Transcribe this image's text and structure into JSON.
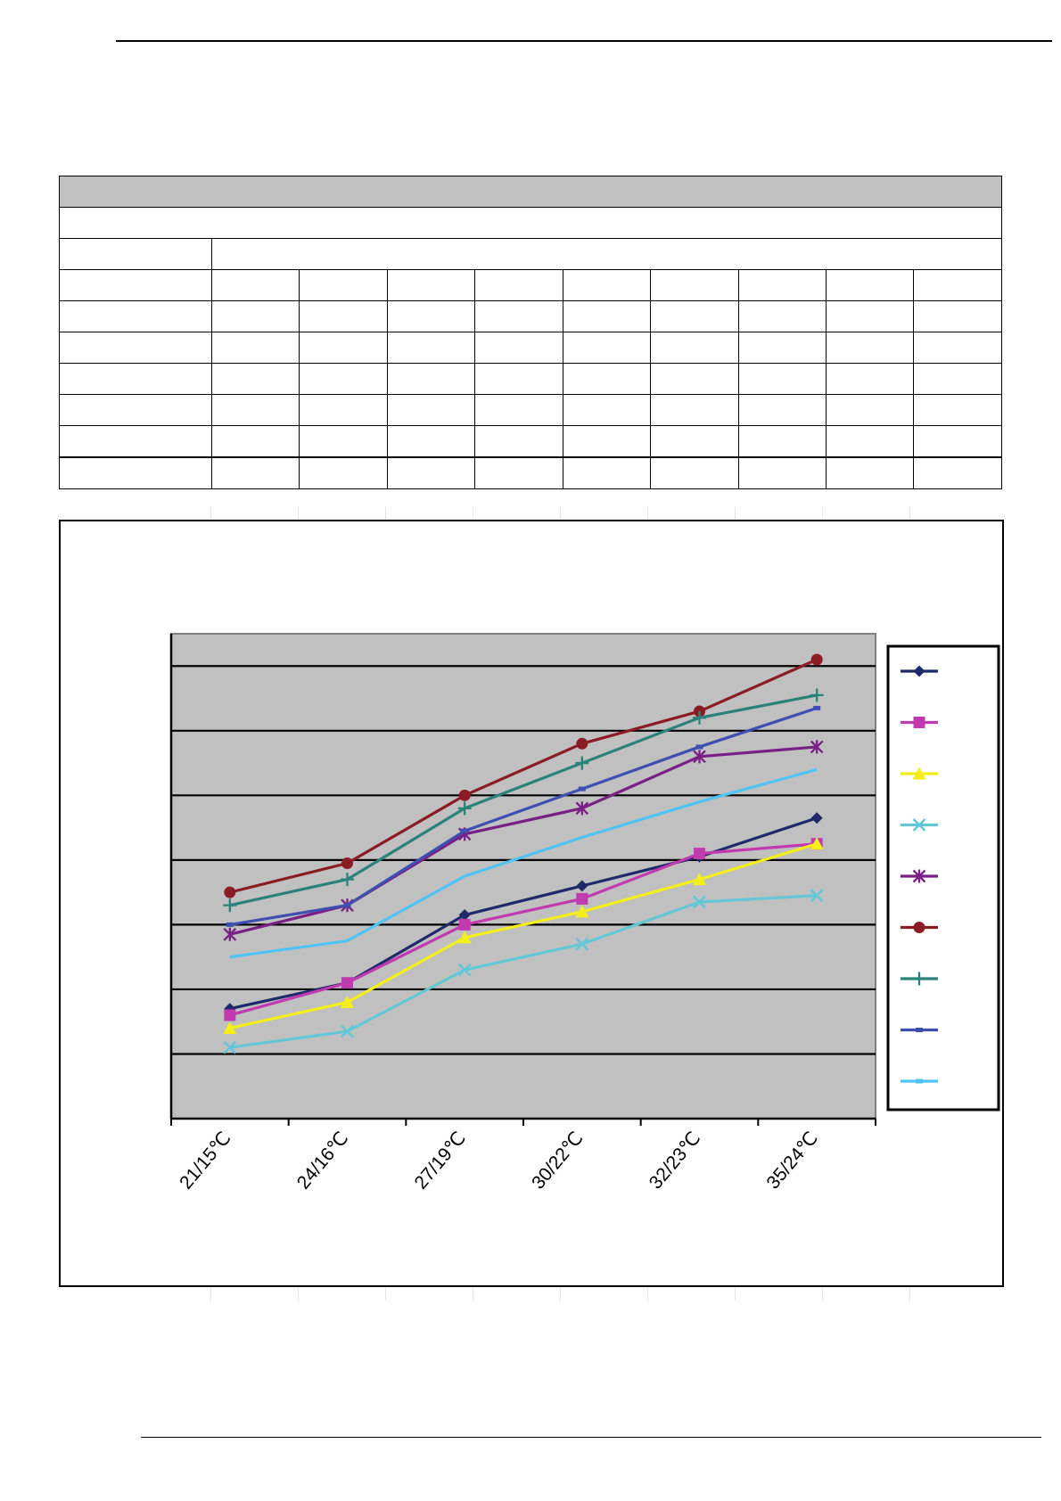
{
  "chart_data": {
    "type": "line",
    "title": "",
    "xlabel": "",
    "ylabel": "",
    "categories": [
      "21/15℃",
      "24/16℃",
      "27/19℃",
      "30/22℃",
      "32/23℃",
      "35/24℃"
    ],
    "ylim": [
      0,
      7.5
    ],
    "grid": true,
    "legend_position": "right",
    "series": [
      {
        "color": "#1f2a6b",
        "marker": "diamond",
        "values": [
          1.7,
          2.1,
          3.15,
          3.6,
          4.05,
          4.65
        ]
      },
      {
        "color": "#c23ab0",
        "marker": "square",
        "values": [
          1.6,
          2.1,
          3.0,
          3.4,
          4.1,
          4.25
        ]
      },
      {
        "color": "#f4ee1a",
        "marker": "triangle",
        "values": [
          1.4,
          1.8,
          2.8,
          3.2,
          3.7,
          4.25
        ]
      },
      {
        "color": "#63c7d6",
        "marker": "x",
        "values": [
          1.1,
          1.35,
          2.3,
          2.7,
          3.35,
          3.45
        ]
      },
      {
        "color": "#7a1f86",
        "marker": "star",
        "values": [
          2.85,
          3.3,
          4.4,
          4.8,
          5.6,
          5.75
        ]
      },
      {
        "color": "#8b1c24",
        "marker": "circle",
        "values": [
          3.5,
          3.95,
          5.0,
          5.8,
          6.3,
          7.1
        ]
      },
      {
        "color": "#2a8278",
        "marker": "plus",
        "values": [
          3.3,
          3.7,
          4.8,
          5.5,
          6.2,
          6.55
        ]
      },
      {
        "color": "#3f4fb1",
        "marker": "dash",
        "values": [
          3.0,
          3.3,
          4.45,
          5.1,
          5.75,
          6.35
        ]
      },
      {
        "color": "#4fc4f4",
        "marker": "none",
        "values": [
          2.5,
          2.75,
          3.75,
          4.35,
          4.9,
          5.4
        ]
      }
    ]
  }
}
